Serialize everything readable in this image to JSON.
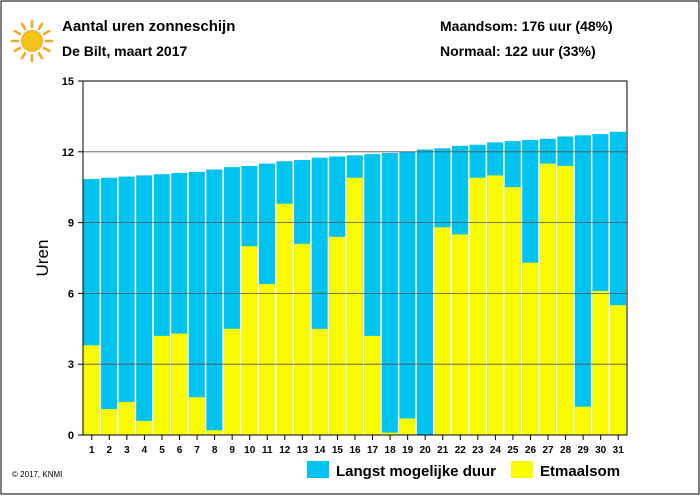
{
  "header": {
    "title": "Aantal uren zonneschijn",
    "subtitle": "De Bilt, maart 2017",
    "month_total": "Maandsom: 176 uur (48%)",
    "normal": "Normaal: 122 uur (33%)",
    "icon": "sun-icon"
  },
  "footer": {
    "copyright": "© 2017, KNMI"
  },
  "colors": {
    "possible": "#00c3ef",
    "actual": "#fbfb00",
    "sun_fill": "#f7c21c",
    "sun_rays": "#f5a623",
    "grid": "#555555"
  },
  "chart_data": {
    "type": "bar",
    "title": "Aantal uren zonneschijn",
    "ylabel": "Uren",
    "xlabel": "",
    "ylim": [
      0,
      15
    ],
    "yticks": [
      0,
      3,
      6,
      9,
      12,
      15
    ],
    "grid": true,
    "legend_position": "bottom-right",
    "categories": [
      "1",
      "2",
      "3",
      "4",
      "5",
      "6",
      "7",
      "8",
      "9",
      "10",
      "11",
      "12",
      "13",
      "14",
      "15",
      "16",
      "17",
      "18",
      "19",
      "20",
      "21",
      "22",
      "23",
      "24",
      "25",
      "26",
      "27",
      "28",
      "29",
      "30",
      "31"
    ],
    "series": [
      {
        "name": "Langst mogelijke duur",
        "color": "#00c3ef",
        "values": [
          10.85,
          10.9,
          10.95,
          11.0,
          11.05,
          11.1,
          11.15,
          11.25,
          11.35,
          11.4,
          11.5,
          11.6,
          11.65,
          11.75,
          11.8,
          11.85,
          11.9,
          11.95,
          12.0,
          12.1,
          12.15,
          12.25,
          12.3,
          12.4,
          12.45,
          12.5,
          12.55,
          12.65,
          12.7,
          12.75,
          12.85
        ]
      },
      {
        "name": "Etmaalsom",
        "color": "#fbfb00",
        "values": [
          3.8,
          1.1,
          1.4,
          0.6,
          4.2,
          4.3,
          1.6,
          0.2,
          4.5,
          8.0,
          6.4,
          9.8,
          8.1,
          4.5,
          8.4,
          10.9,
          4.2,
          0.1,
          0.7,
          0.0,
          8.8,
          8.5,
          10.9,
          11.0,
          10.5,
          7.3,
          11.5,
          11.4,
          1.2,
          6.1,
          5.5
        ]
      }
    ]
  }
}
